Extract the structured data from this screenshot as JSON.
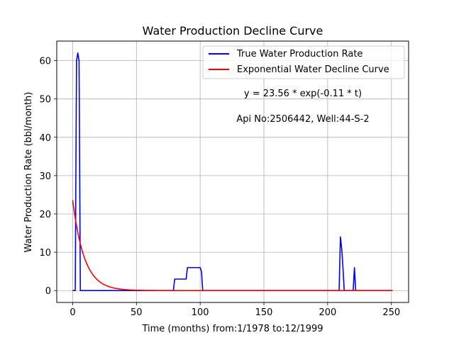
{
  "chart_data": {
    "type": "line",
    "title": "Water Production Decline Curve",
    "xlabel": "Time (months) from:1/1978 to:12/1999",
    "ylabel": "Water Production Rate (bbl/month)",
    "xlim": [
      -12.5,
      263.5
    ],
    "ylim": [
      -3.1,
      65.1
    ],
    "xticks": [
      0,
      50,
      100,
      150,
      200,
      250
    ],
    "yticks": [
      0,
      10,
      20,
      30,
      40,
      50,
      60
    ],
    "grid": true,
    "legend_position": "top-right",
    "series": [
      {
        "name": "True Water Production Rate",
        "color": "#0000ff",
        "x": [
          0,
          1,
          2,
          3,
          4,
          5,
          6,
          7,
          8,
          10,
          20,
          30,
          40,
          50,
          60,
          70,
          78,
          79,
          80,
          81,
          85,
          88,
          89,
          90,
          91,
          95,
          100,
          101,
          102,
          103,
          110,
          150,
          200,
          208,
          209,
          210,
          211,
          212,
          213,
          214,
          219,
          220,
          221,
          222,
          230,
          240,
          250
        ],
        "y": [
          0,
          0,
          0,
          60,
          62,
          60,
          0,
          0,
          0,
          0,
          0,
          0,
          0,
          0,
          0,
          0,
          0,
          0,
          3,
          3,
          3,
          3,
          3,
          6,
          6,
          6,
          6,
          5,
          0,
          0,
          0,
          0,
          0,
          0,
          0,
          14,
          11,
          6,
          0,
          0,
          0,
          0,
          6,
          0,
          0,
          0,
          0
        ]
      },
      {
        "name": "Exponential Water Decline Curve",
        "color": "#ff0000",
        "equation": {
          "a": 23.56,
          "b": 0.11,
          "t_start": 0,
          "t_end": 251
        }
      }
    ],
    "annotations": [
      "y = 23.56 * exp(-0.11 * t)",
      "Api No:2506442, Well:44-S-2"
    ]
  }
}
